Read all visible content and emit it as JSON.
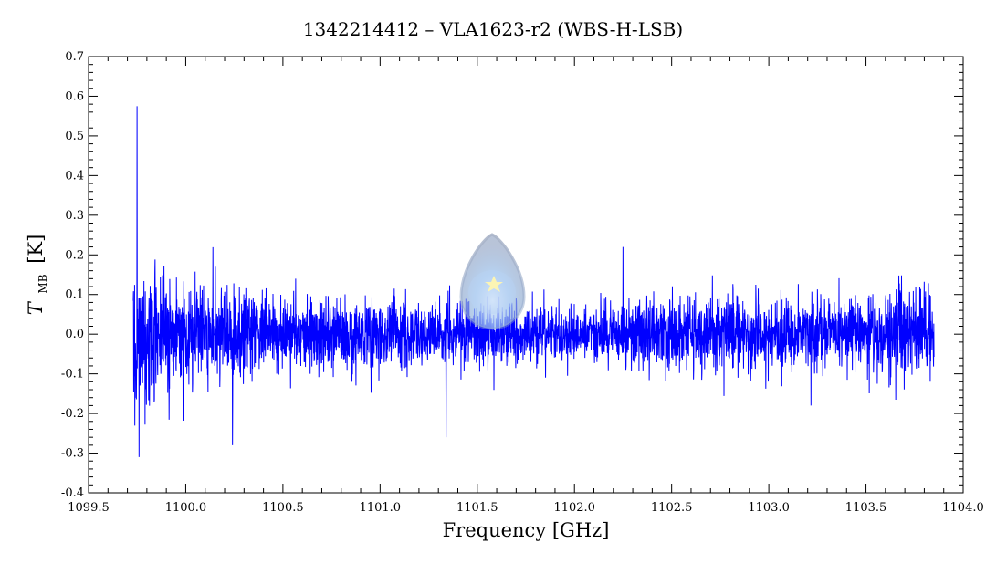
{
  "chart_data": {
    "type": "line",
    "title": "1342214412 – VLA1623-r2 (WBS-H-LSB)",
    "xlabel": "Frequency [GHz]",
    "ylabel": {
      "symbol": "T",
      "subscript": "MB",
      "unit": "[K]"
    },
    "xlim": [
      1099.5,
      1104.0
    ],
    "ylim": [
      -0.4,
      0.7
    ],
    "x_ticks": [
      1099.5,
      1100.0,
      1100.5,
      1101.0,
      1101.5,
      1102.0,
      1102.5,
      1103.0,
      1103.5,
      1104.0
    ],
    "x_tick_labels": [
      "1099.5",
      "1100.0",
      "1100.5",
      "1101.0",
      "1101.5",
      "1102.0",
      "1102.5",
      "1103.0",
      "1103.5",
      "1104.0"
    ],
    "y_ticks": [
      -0.4,
      -0.3,
      -0.2,
      -0.1,
      0.0,
      0.1,
      0.2,
      0.3,
      0.4,
      0.5,
      0.6,
      0.7
    ],
    "y_tick_labels": [
      "-0.4",
      "-0.3",
      "-0.2",
      "-0.1",
      "0.0",
      "0.1",
      "0.2",
      "0.3",
      "0.4",
      "0.5",
      "0.6",
      "0.7"
    ],
    "grid": false,
    "series": [
      {
        "color": "#0000ff",
        "x_range": [
          1099.73,
          1103.85
        ],
        "baseline": 0.0,
        "features": [
          {
            "x": 1099.75,
            "y": 0.575
          },
          {
            "x": 1099.76,
            "y": -0.31
          },
          {
            "x": 1100.24,
            "y": -0.28
          },
          {
            "x": 1101.34,
            "y": -0.26
          },
          {
            "x": 1102.25,
            "y": 0.22
          }
        ]
      }
    ]
  },
  "colors": {
    "series": "#0000ff",
    "axis": "#000000",
    "background": "#ffffff"
  },
  "watermark": {
    "icon": "star-droplet-logo-icon"
  }
}
